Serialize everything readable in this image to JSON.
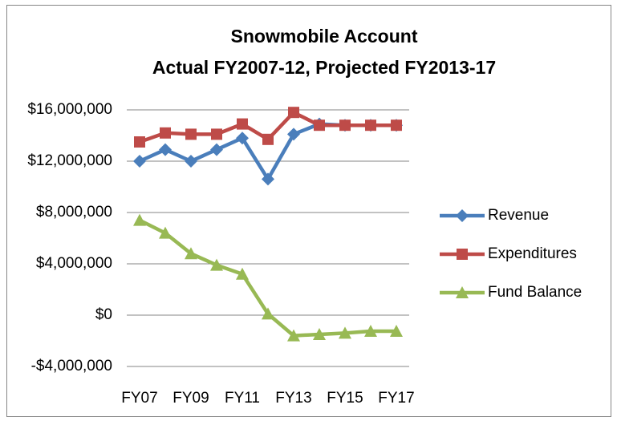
{
  "chart_data": {
    "type": "line",
    "title": [
      "Snowmobile Account",
      "Actual FY2007-12, Projected FY2013-17"
    ],
    "categories": [
      "FY07",
      null,
      "FY09",
      null,
      "FY11",
      null,
      "FY13",
      null,
      "FY15",
      null,
      "FY17"
    ],
    "series": [
      {
        "name": "Revenue",
        "color": "#4a7ebb",
        "marker": "diamond",
        "values": [
          12000000,
          12900000,
          12000000,
          12900000,
          13800000,
          10600000,
          14100000,
          14900000,
          14800000,
          14800000,
          14800000
        ]
      },
      {
        "name": "Expenditures",
        "color": "#be4b48",
        "marker": "square",
        "values": [
          13500000,
          14200000,
          14100000,
          14100000,
          14900000,
          13700000,
          15800000,
          14800000,
          14800000,
          14800000,
          14800000
        ]
      },
      {
        "name": "Fund Balance",
        "color": "#98b954",
        "marker": "triangle",
        "values": [
          7400000,
          6400000,
          4800000,
          3900000,
          3200000,
          100000,
          -1600000,
          -1500000,
          -1400000,
          -1250000,
          -1250000
        ]
      }
    ],
    "ylim": [
      -4000000,
      16000000
    ],
    "yticks": [
      {
        "value": -4000000,
        "label": "-$4,000,000"
      },
      {
        "value": 0,
        "label": "$0"
      },
      {
        "value": 4000000,
        "label": "$4,000,000"
      },
      {
        "value": 8000000,
        "label": "$8,000,000"
      },
      {
        "value": 12000000,
        "label": "$12,000,000"
      },
      {
        "value": 16000000,
        "label": "$16,000,000"
      }
    ],
    "grid": true,
    "legend": "right"
  }
}
